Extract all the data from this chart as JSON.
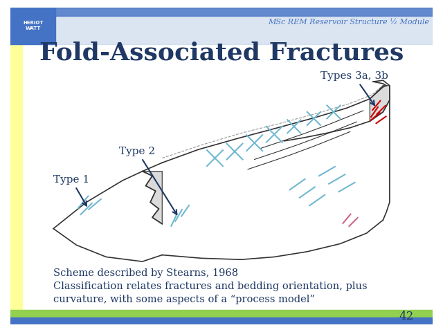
{
  "title": "Fold-Associated Fractures",
  "title_color": "#1F3864",
  "title_fontsize": 26,
  "header_text": "MSc REM Reservoir Structure ½ Module",
  "header_color": "#4472C4",
  "bg_color": "#FFFFFF",
  "left_strip_color": "#FFFF99",
  "green_strip_color": "#92D050",
  "blue_strip_color": "#4472C4",
  "page_number": "42",
  "label_type1": "Type 1",
  "label_type2": "Type 2",
  "label_type3": "Types 3a, 3b",
  "body_text1": "Scheme described by Stearns, 1968",
  "body_text2": "Classification relates fractures and bedding orientation, plus\ncurvature, with some aspects of a “process model”",
  "body_color": "#1F3864",
  "label_color": "#1F3864",
  "arrow_color": "#1F3864"
}
